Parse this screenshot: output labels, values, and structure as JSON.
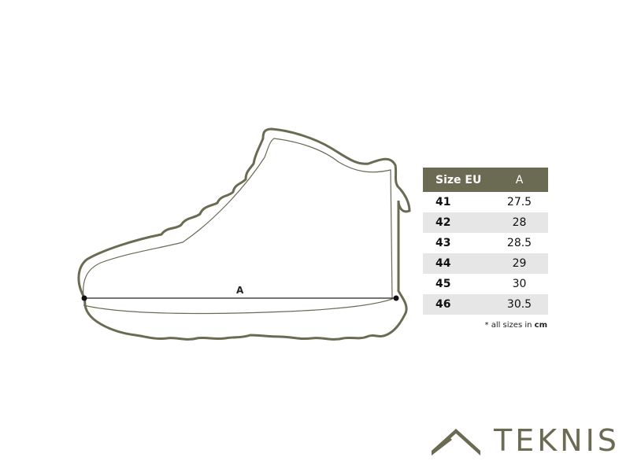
{
  "diagram": {
    "measure_label": "A"
  },
  "size_table": {
    "headers": [
      "Size EU",
      "A"
    ],
    "rows": [
      {
        "size": "41",
        "a": "27.5"
      },
      {
        "size": "42",
        "a": "28"
      },
      {
        "size": "43",
        "a": "28.5"
      },
      {
        "size": "44",
        "a": "29"
      },
      {
        "size": "45",
        "a": "30"
      },
      {
        "size": "46",
        "a": "30.5"
      }
    ],
    "note_prefix": "* all sizes in ",
    "note_unit": "cm"
  },
  "brand": {
    "name": "TEKNIS",
    "color": "#6b6a52"
  }
}
